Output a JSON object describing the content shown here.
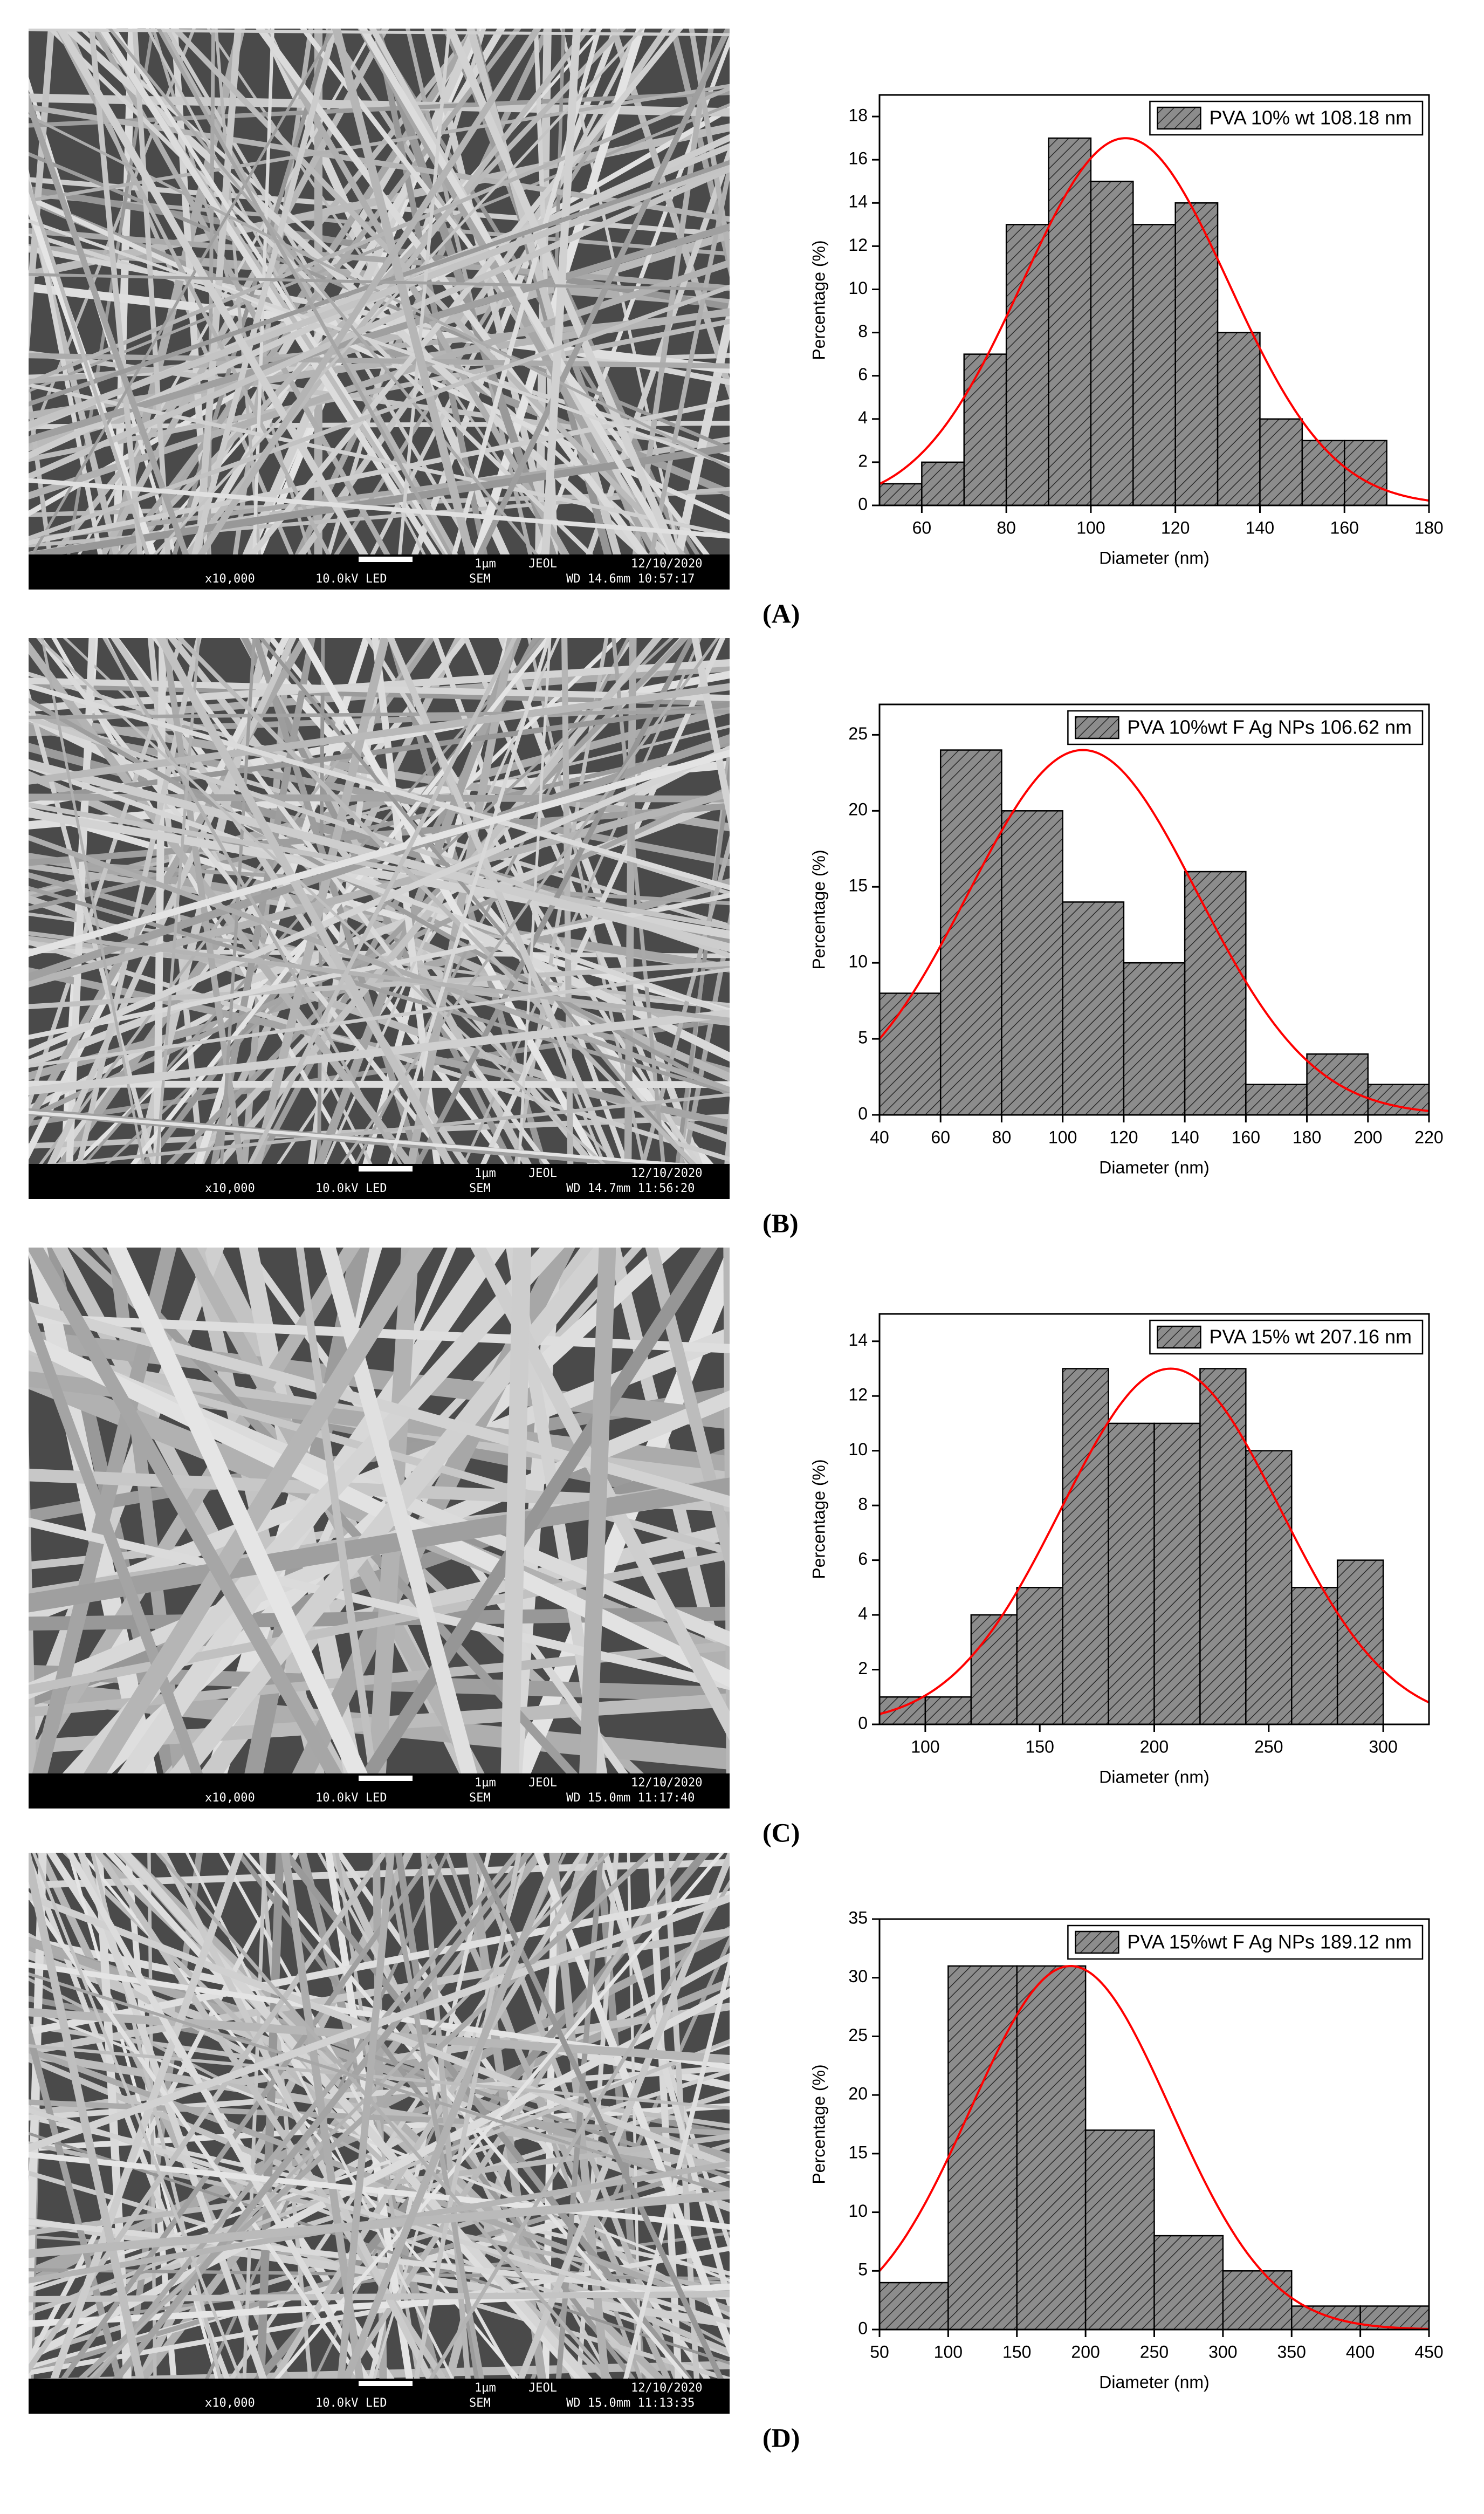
{
  "chart_data": [
    {
      "type": "histogram",
      "bins": [
        50,
        60,
        70,
        80,
        90,
        100,
        110,
        120,
        130,
        140,
        150,
        160,
        170
      ],
      "values": [
        1,
        2,
        7,
        13,
        17,
        15,
        13,
        14,
        8,
        4,
        3,
        3
      ],
      "color": "#8c8c8c",
      "xlim": [
        50,
        180
      ],
      "xticks": [
        60,
        80,
        100,
        120,
        140,
        160,
        180
      ],
      "ylim": [
        0,
        19
      ],
      "yticks": [
        0,
        2,
        4,
        6,
        8,
        10,
        12,
        14,
        16,
        18
      ],
      "x_label": "Diameter (nm)",
      "y_label": "Percentage (%)",
      "legend": "PVA 10% wt 108.18 nm",
      "legend_position": "upper right",
      "fit": {
        "mean": 108.18,
        "sd": 24.4,
        "peak": 17,
        "color": "#ff0000"
      }
    },
    {
      "type": "histogram",
      "bins": [
        40,
        60,
        80,
        100,
        120,
        140,
        160,
        180,
        200,
        220
      ],
      "values": [
        8,
        24,
        20,
        14,
        10,
        16,
        2,
        4,
        2
      ],
      "color": "#8c8c8c",
      "xlim": [
        40,
        220
      ],
      "xticks": [
        40,
        60,
        80,
        100,
        120,
        140,
        160,
        180,
        200,
        220
      ],
      "ylim": [
        0,
        27
      ],
      "yticks": [
        0,
        5,
        10,
        15,
        20,
        25
      ],
      "x_label": "Diameter (nm)",
      "y_label": "Percentage (%)",
      "legend": "PVA 10%wt F Ag NPs 106.62 nm",
      "legend_position": "upper right",
      "fit": {
        "mean": 106.62,
        "sd": 37.6,
        "peak": 24,
        "color": "#ff0000"
      }
    },
    {
      "type": "histogram",
      "bins": [
        80,
        100,
        120,
        140,
        160,
        180,
        200,
        220,
        240,
        260,
        280,
        300
      ],
      "values": [
        1,
        1,
        4,
        5,
        13,
        11,
        11,
        13,
        10,
        5,
        6
      ],
      "color": "#8c8c8c",
      "xlim": [
        80,
        320
      ],
      "xticks": [
        100,
        150,
        200,
        250,
        300
      ],
      "ylim": [
        0,
        15
      ],
      "yticks": [
        0,
        2,
        4,
        6,
        8,
        10,
        12,
        14
      ],
      "x_label": "Diameter (nm)",
      "y_label": "Percentage (%)",
      "legend": "PVA 15% wt 207.16 nm",
      "legend_position": "upper right",
      "fit": {
        "mean": 207.16,
        "sd": 47.8,
        "peak": 13,
        "color": "#ff0000"
      }
    },
    {
      "type": "histogram",
      "bins": [
        50,
        100,
        150,
        200,
        250,
        300,
        350,
        400,
        450
      ],
      "values": [
        4,
        31,
        31,
        17,
        8,
        5,
        2,
        2
      ],
      "color": "#8c8c8c",
      "xlim": [
        50,
        450
      ],
      "xticks": [
        50,
        100,
        150,
        200,
        250,
        300,
        350,
        400,
        450
      ],
      "ylim": [
        0,
        35
      ],
      "yticks": [
        0,
        5,
        10,
        15,
        20,
        25,
        30,
        35
      ],
      "x_label": "Diameter (nm)",
      "y_label": "Percentage (%)",
      "legend": "PVA 15%wt F Ag NPs 189.12 nm",
      "legend_position": "upper right",
      "fit": {
        "mean": 189.12,
        "sd": 72.8,
        "peak": 31,
        "color": "#ff0000"
      }
    }
  ],
  "panels": [
    {
      "label": "(A)",
      "sem": {
        "scale": "1µm",
        "lab": "JEOL",
        "date": "12/10/2020",
        "mag": "x10,000",
        "kv": "10.0kV LED",
        "mode": "SEM",
        "wd": "WD 14.6mm 10:57:17"
      }
    },
    {
      "label": "(B)",
      "sem": {
        "scale": "1µm",
        "lab": "JEOL",
        "date": "12/10/2020",
        "mag": "x10,000",
        "kv": "10.0kV LED",
        "mode": "SEM",
        "wd": "WD 14.7mm 11:56:20"
      }
    },
    {
      "label": "(C)",
      "sem": {
        "scale": "1µm",
        "lab": "JEOL",
        "date": "12/10/2020",
        "mag": "x10,000",
        "kv": "10.0kV LED",
        "mode": "SEM",
        "wd": "WD 15.0mm 11:17:40"
      }
    },
    {
      "label": "(D)",
      "sem": {
        "scale": "1µm",
        "lab": "JEOL",
        "date": "12/10/2020",
        "mag": "x10,000",
        "kv": "10.0kV LED",
        "mode": "SEM",
        "wd": "WD 15.0mm 11:13:35"
      }
    }
  ]
}
